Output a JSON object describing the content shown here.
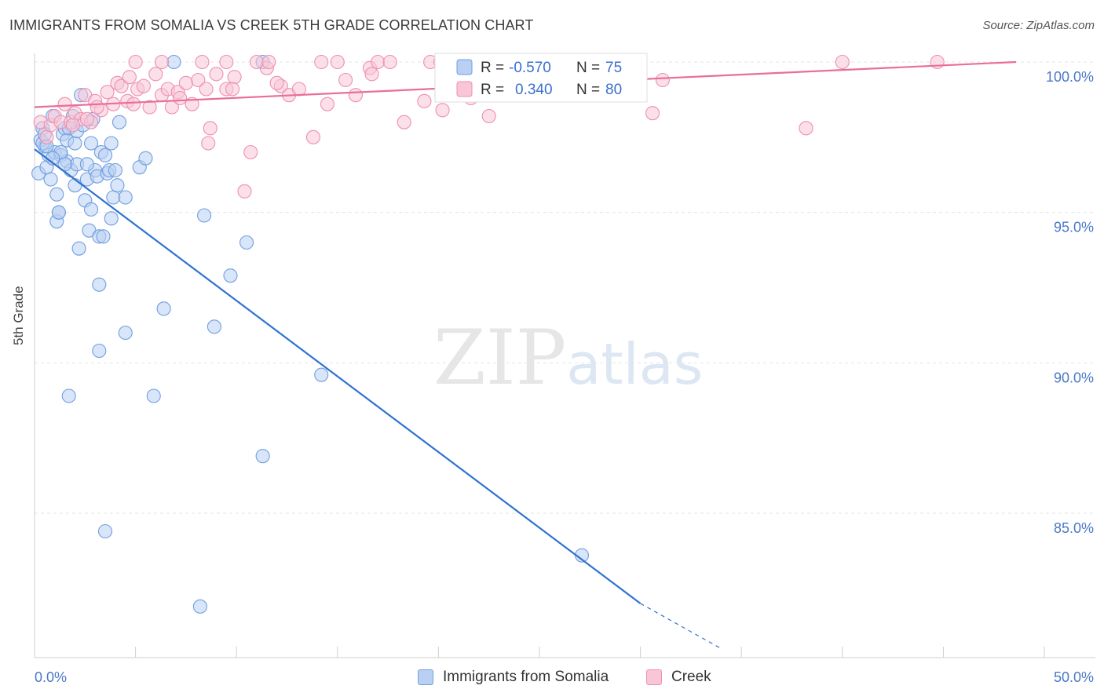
{
  "title": "IMMIGRANTS FROM SOMALIA VS CREEK 5TH GRADE CORRELATION CHART",
  "source": "Source: ZipAtlas.com",
  "watermark": {
    "zip": "ZIP",
    "atlas": "atlas"
  },
  "chart_data": {
    "type": "scatter",
    "title": "IMMIGRANTS FROM SOMALIA VS CREEK 5TH GRADE CORRELATION CHART",
    "xlabel": "",
    "ylabel": "5th Grade",
    "xlim": [
      0,
      50
    ],
    "ylim": [
      80.5,
      100.8
    ],
    "x_tick_labels": {
      "left": "0.0%",
      "right": "50.0%"
    },
    "y_ticks": [
      {
        "value": 100,
        "label": "100.0%"
      },
      {
        "value": 95,
        "label": "95.0%"
      },
      {
        "value": 90,
        "label": "90.0%"
      },
      {
        "value": 85,
        "label": "85.0%"
      }
    ],
    "legend": [
      {
        "r_label": "R =",
        "r_value": "-0.570",
        "n_label": "N =",
        "n_value": "75"
      },
      {
        "r_label": "R =",
        "r_value": "0.340",
        "n_label": "N =",
        "n_value": "80"
      }
    ],
    "series": [
      {
        "name": "Immigrants from Somalia",
        "color": "#6f9fe0",
        "fill": "#b9d0f2",
        "line_color": "#2e72d2",
        "trend": {
          "x0": 0,
          "y0": 97.1,
          "x1": 30,
          "y1": 82.0,
          "dash_to_x": 34,
          "dash_to_y": 80.5
        },
        "points": [
          [
            0.2,
            96.3
          ],
          [
            0.3,
            97.4
          ],
          [
            0.4,
            97.8
          ],
          [
            0.5,
            97.2
          ],
          [
            0.6,
            96.5
          ],
          [
            0.7,
            96.9
          ],
          [
            0.8,
            96.1
          ],
          [
            0.9,
            98.2
          ],
          [
            1.0,
            97.0
          ],
          [
            1.1,
            95.6
          ],
          [
            1.1,
            94.7
          ],
          [
            1.2,
            95.0
          ],
          [
            1.3,
            96.9
          ],
          [
            1.4,
            97.6
          ],
          [
            1.5,
            97.8
          ],
          [
            1.6,
            97.4
          ],
          [
            1.6,
            96.7
          ],
          [
            1.7,
            97.8
          ],
          [
            1.8,
            96.4
          ],
          [
            1.9,
            98.2
          ],
          [
            2.0,
            95.9
          ],
          [
            2.0,
            97.3
          ],
          [
            2.1,
            97.7
          ],
          [
            2.2,
            93.8
          ],
          [
            2.3,
            98.9
          ],
          [
            2.4,
            97.9
          ],
          [
            2.5,
            95.4
          ],
          [
            2.6,
            96.1
          ],
          [
            2.7,
            94.4
          ],
          [
            2.8,
            97.3
          ],
          [
            2.8,
            95.1
          ],
          [
            2.9,
            98.1
          ],
          [
            3.0,
            96.4
          ],
          [
            3.1,
            96.2
          ],
          [
            3.2,
            94.2
          ],
          [
            3.3,
            97.0
          ],
          [
            3.4,
            94.2
          ],
          [
            3.5,
            96.9
          ],
          [
            3.6,
            96.3
          ],
          [
            3.7,
            96.4
          ],
          [
            3.8,
            97.3
          ],
          [
            3.9,
            95.5
          ],
          [
            4.0,
            96.4
          ],
          [
            4.1,
            95.9
          ],
          [
            4.2,
            98.0
          ],
          [
            4.5,
            95.5
          ],
          [
            5.2,
            96.5
          ],
          [
            5.5,
            96.8
          ],
          [
            6.9,
            100.0
          ],
          [
            11.3,
            100.0
          ],
          [
            2.1,
            96.6
          ],
          [
            0.4,
            97.3
          ],
          [
            1.5,
            96.6
          ],
          [
            0.6,
            97.2
          ],
          [
            1.3,
            97.0
          ],
          [
            8.4,
            94.9
          ],
          [
            10.5,
            94.0
          ],
          [
            9.7,
            92.9
          ],
          [
            3.2,
            92.6
          ],
          [
            6.4,
            91.8
          ],
          [
            8.9,
            91.2
          ],
          [
            4.5,
            91.0
          ],
          [
            3.2,
            90.4
          ],
          [
            14.2,
            89.6
          ],
          [
            1.7,
            88.9
          ],
          [
            5.9,
            88.9
          ],
          [
            11.3,
            86.9
          ],
          [
            3.5,
            84.4
          ],
          [
            27.1,
            83.6
          ],
          [
            8.2,
            81.9
          ],
          [
            0.9,
            96.8
          ],
          [
            2.6,
            96.6
          ],
          [
            3.8,
            94.8
          ],
          [
            1.2,
            95.0
          ],
          [
            0.5,
            97.6
          ]
        ]
      },
      {
        "name": "Creek",
        "color": "#ef8fb0",
        "fill": "#f8c6d7",
        "line_color": "#e96e98",
        "trend": {
          "x0": 0,
          "y0": 98.5,
          "x1": 48.6,
          "y1": 100.0
        },
        "points": [
          [
            0.3,
            98.0
          ],
          [
            0.6,
            97.5
          ],
          [
            0.8,
            97.9
          ],
          [
            1.0,
            98.2
          ],
          [
            1.3,
            98.0
          ],
          [
            1.5,
            98.6
          ],
          [
            1.8,
            98.0
          ],
          [
            2.0,
            98.3
          ],
          [
            2.3,
            98.1
          ],
          [
            2.5,
            98.9
          ],
          [
            2.8,
            98.0
          ],
          [
            3.0,
            98.7
          ],
          [
            3.3,
            98.4
          ],
          [
            3.6,
            99.0
          ],
          [
            3.9,
            98.6
          ],
          [
            4.1,
            99.3
          ],
          [
            4.3,
            99.2
          ],
          [
            4.6,
            98.7
          ],
          [
            4.9,
            98.6
          ],
          [
            5.1,
            99.1
          ],
          [
            5.4,
            99.2
          ],
          [
            5.7,
            98.5
          ],
          [
            6.0,
            99.6
          ],
          [
            6.3,
            98.9
          ],
          [
            6.6,
            99.1
          ],
          [
            6.8,
            98.5
          ],
          [
            7.1,
            99.0
          ],
          [
            7.5,
            99.3
          ],
          [
            7.8,
            98.6
          ],
          [
            8.1,
            99.4
          ],
          [
            8.5,
            99.1
          ],
          [
            8.7,
            97.8
          ],
          [
            9.0,
            99.6
          ],
          [
            9.5,
            99.1
          ],
          [
            9.9,
            99.5
          ],
          [
            10.4,
            95.7
          ],
          [
            10.7,
            97.0
          ],
          [
            11.5,
            99.8
          ],
          [
            12.2,
            99.2
          ],
          [
            12.6,
            98.9
          ],
          [
            13.1,
            99.1
          ],
          [
            13.8,
            97.5
          ],
          [
            14.5,
            98.6
          ],
          [
            15.4,
            99.4
          ],
          [
            15.9,
            98.9
          ],
          [
            16.6,
            99.8
          ],
          [
            18.3,
            98.0
          ],
          [
            19.3,
            98.7
          ],
          [
            19.6,
            100.0
          ],
          [
            20.2,
            98.4
          ],
          [
            22.5,
            98.2
          ],
          [
            24.3,
            100.0
          ],
          [
            30.6,
            98.3
          ],
          [
            31.1,
            99.4
          ],
          [
            38.2,
            97.8
          ],
          [
            40.0,
            100.0
          ],
          [
            44.7,
            100.0
          ],
          [
            5.0,
            100.0
          ],
          [
            6.3,
            100.0
          ],
          [
            8.3,
            100.0
          ],
          [
            9.5,
            100.0
          ],
          [
            11.0,
            100.0
          ],
          [
            11.6,
            100.0
          ],
          [
            14.2,
            100.0
          ],
          [
            15.0,
            100.0
          ],
          [
            17.0,
            100.0
          ],
          [
            17.6,
            100.0
          ],
          [
            20.1,
            100.0
          ],
          [
            23.1,
            100.0
          ],
          [
            25.2,
            100.0
          ],
          [
            12.0,
            99.3
          ],
          [
            2.6,
            98.1
          ],
          [
            3.1,
            98.5
          ],
          [
            4.7,
            99.5
          ],
          [
            7.2,
            98.8
          ],
          [
            8.6,
            97.3
          ],
          [
            9.8,
            99.1
          ],
          [
            16.7,
            99.6
          ],
          [
            21.6,
            98.8
          ],
          [
            1.9,
            97.9
          ]
        ]
      }
    ]
  },
  "bottom_legend": [
    {
      "label": "Immigrants from Somalia"
    },
    {
      "label": "Creek"
    }
  ]
}
